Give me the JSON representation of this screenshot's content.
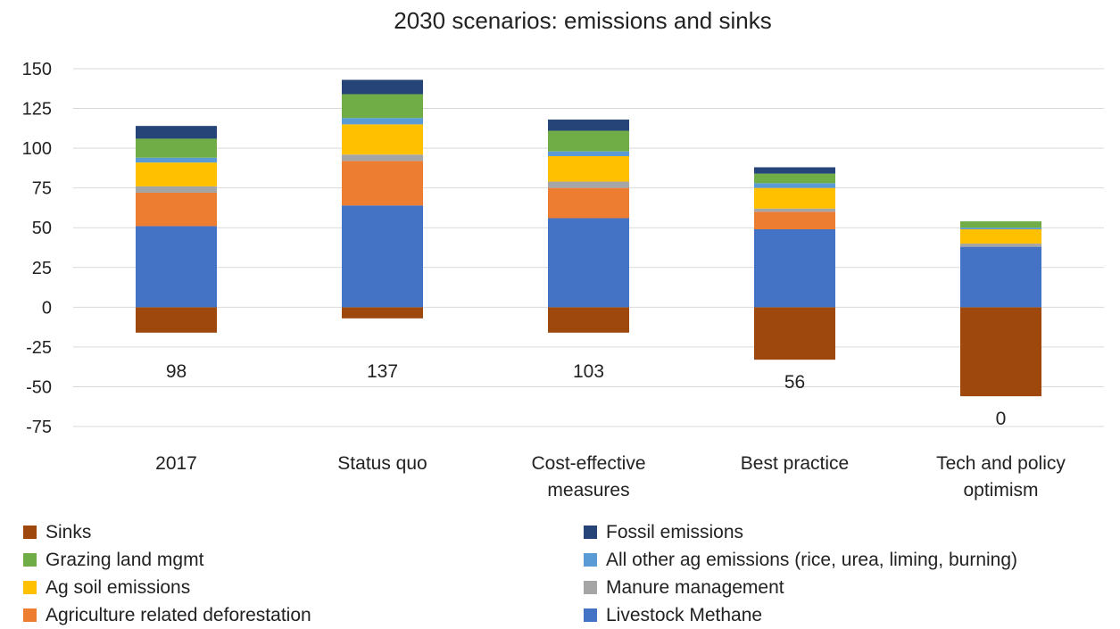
{
  "chart_data": {
    "type": "bar",
    "stacked": true,
    "title": "2030 scenarios: emissions and sinks",
    "categories": [
      [
        "2017"
      ],
      [
        "Status quo"
      ],
      [
        "Cost-effective",
        "measures"
      ],
      [
        "Best practice"
      ],
      [
        "Tech and policy",
        "optimism"
      ]
    ],
    "ylim": [
      -75,
      150
    ],
    "yticks": [
      150,
      125,
      100,
      75,
      50,
      25,
      0,
      -25,
      -50,
      -75
    ],
    "grid": true,
    "legend_position": "bottom",
    "series": [
      {
        "name": "Sinks",
        "color": "#9E480E",
        "values": [
          -16,
          -7,
          -16,
          -33,
          -56
        ]
      },
      {
        "name": "Livestock Methane",
        "color": "#4472C4",
        "values": [
          51,
          64,
          56,
          49,
          38
        ]
      },
      {
        "name": "Agriculture related deforestation",
        "color": "#ED7D31",
        "values": [
          21,
          28,
          19,
          11,
          0
        ]
      },
      {
        "name": "Manure management",
        "color": "#A5A5A5",
        "values": [
          4,
          4,
          4,
          2,
          2
        ]
      },
      {
        "name": "Ag soil emissions",
        "color": "#FFC000",
        "values": [
          15,
          19,
          16,
          13,
          9
        ]
      },
      {
        "name": "All other ag emissions (rice, urea, liming, burning)",
        "color": "#5B9BD5",
        "values": [
          3,
          4,
          3,
          3,
          1
        ]
      },
      {
        "name": "Grazing land mgmt",
        "color": "#70AD47",
        "values": [
          12,
          15,
          13,
          6,
          4
        ]
      },
      {
        "name": "Fossil emissions",
        "color": "#264478",
        "values": [
          8,
          9,
          7,
          4,
          0
        ]
      }
    ],
    "net_labels": [
      "98",
      "137",
      "103",
      "56",
      "0"
    ],
    "net_values": [
      98,
      137,
      103,
      56,
      0
    ],
    "legend_order": [
      "Sinks",
      "Fossil emissions",
      "Grazing land mgmt",
      "All other ag emissions (rice, urea, liming, burning)",
      "Ag soil emissions",
      "Manure management",
      "Agriculture related deforestation",
      "Livestock Methane"
    ]
  }
}
